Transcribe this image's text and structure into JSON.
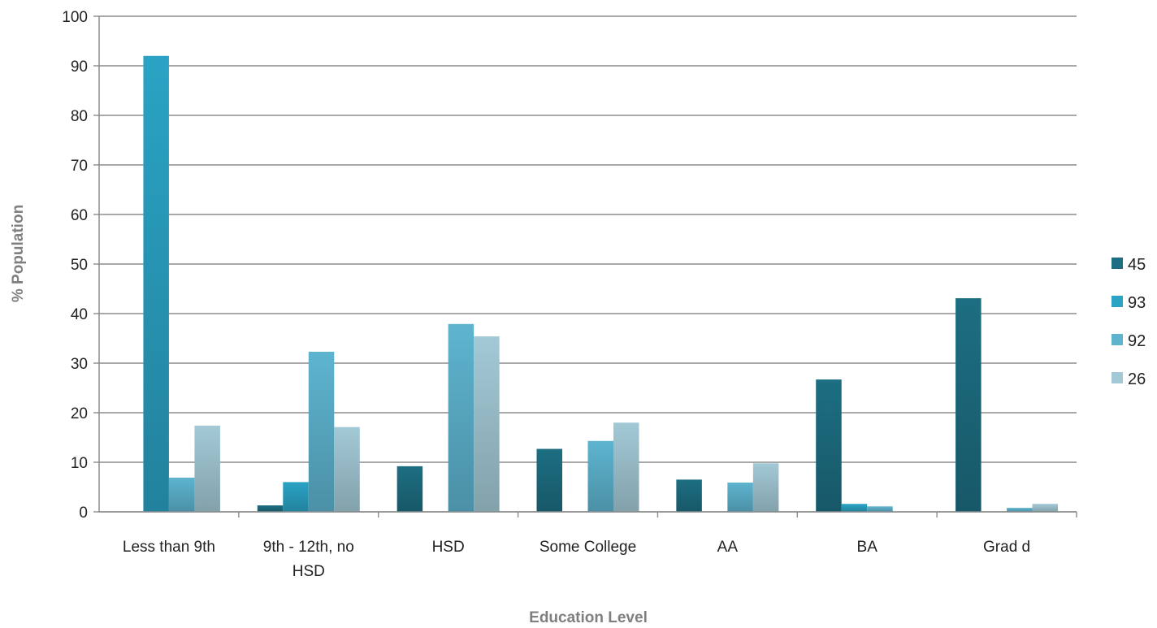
{
  "chart_data": {
    "type": "bar",
    "title": "",
    "xlabel": "Education Level",
    "ylabel": "% Population",
    "ylim": [
      0,
      100
    ],
    "yticks": [
      0,
      10,
      20,
      30,
      40,
      50,
      60,
      70,
      80,
      90,
      100
    ],
    "grid": true,
    "legend_position": "right",
    "categories": [
      "Less than 9th",
      "9th - 12th, no HSD",
      "HSD",
      "Some College",
      "AA",
      "BA",
      "Grad d"
    ],
    "category_lines": [
      [
        "Less than 9th"
      ],
      [
        "9th - 12th, no",
        "HSD"
      ],
      [
        "HSD"
      ],
      [
        "Some College"
      ],
      [
        "AA"
      ],
      [
        "BA"
      ],
      [
        "Grad d"
      ]
    ],
    "series": [
      {
        "name": "45",
        "color": "#1d6e82",
        "values": [
          0,
          1.3,
          9.2,
          12.7,
          6.5,
          26.7,
          43.1
        ]
      },
      {
        "name": "93",
        "color": "#2aa3c4",
        "values": [
          92,
          6.0,
          0,
          0,
          0,
          1.6,
          0
        ]
      },
      {
        "name": "92",
        "color": "#5eb4cf",
        "values": [
          6.9,
          32.3,
          37.9,
          14.3,
          5.9,
          1.1,
          0.8
        ]
      },
      {
        "name": "26",
        "color": "#a3c9d6",
        "values": [
          17.4,
          17.1,
          35.4,
          18.0,
          9.8,
          0,
          1.6
        ]
      }
    ]
  }
}
